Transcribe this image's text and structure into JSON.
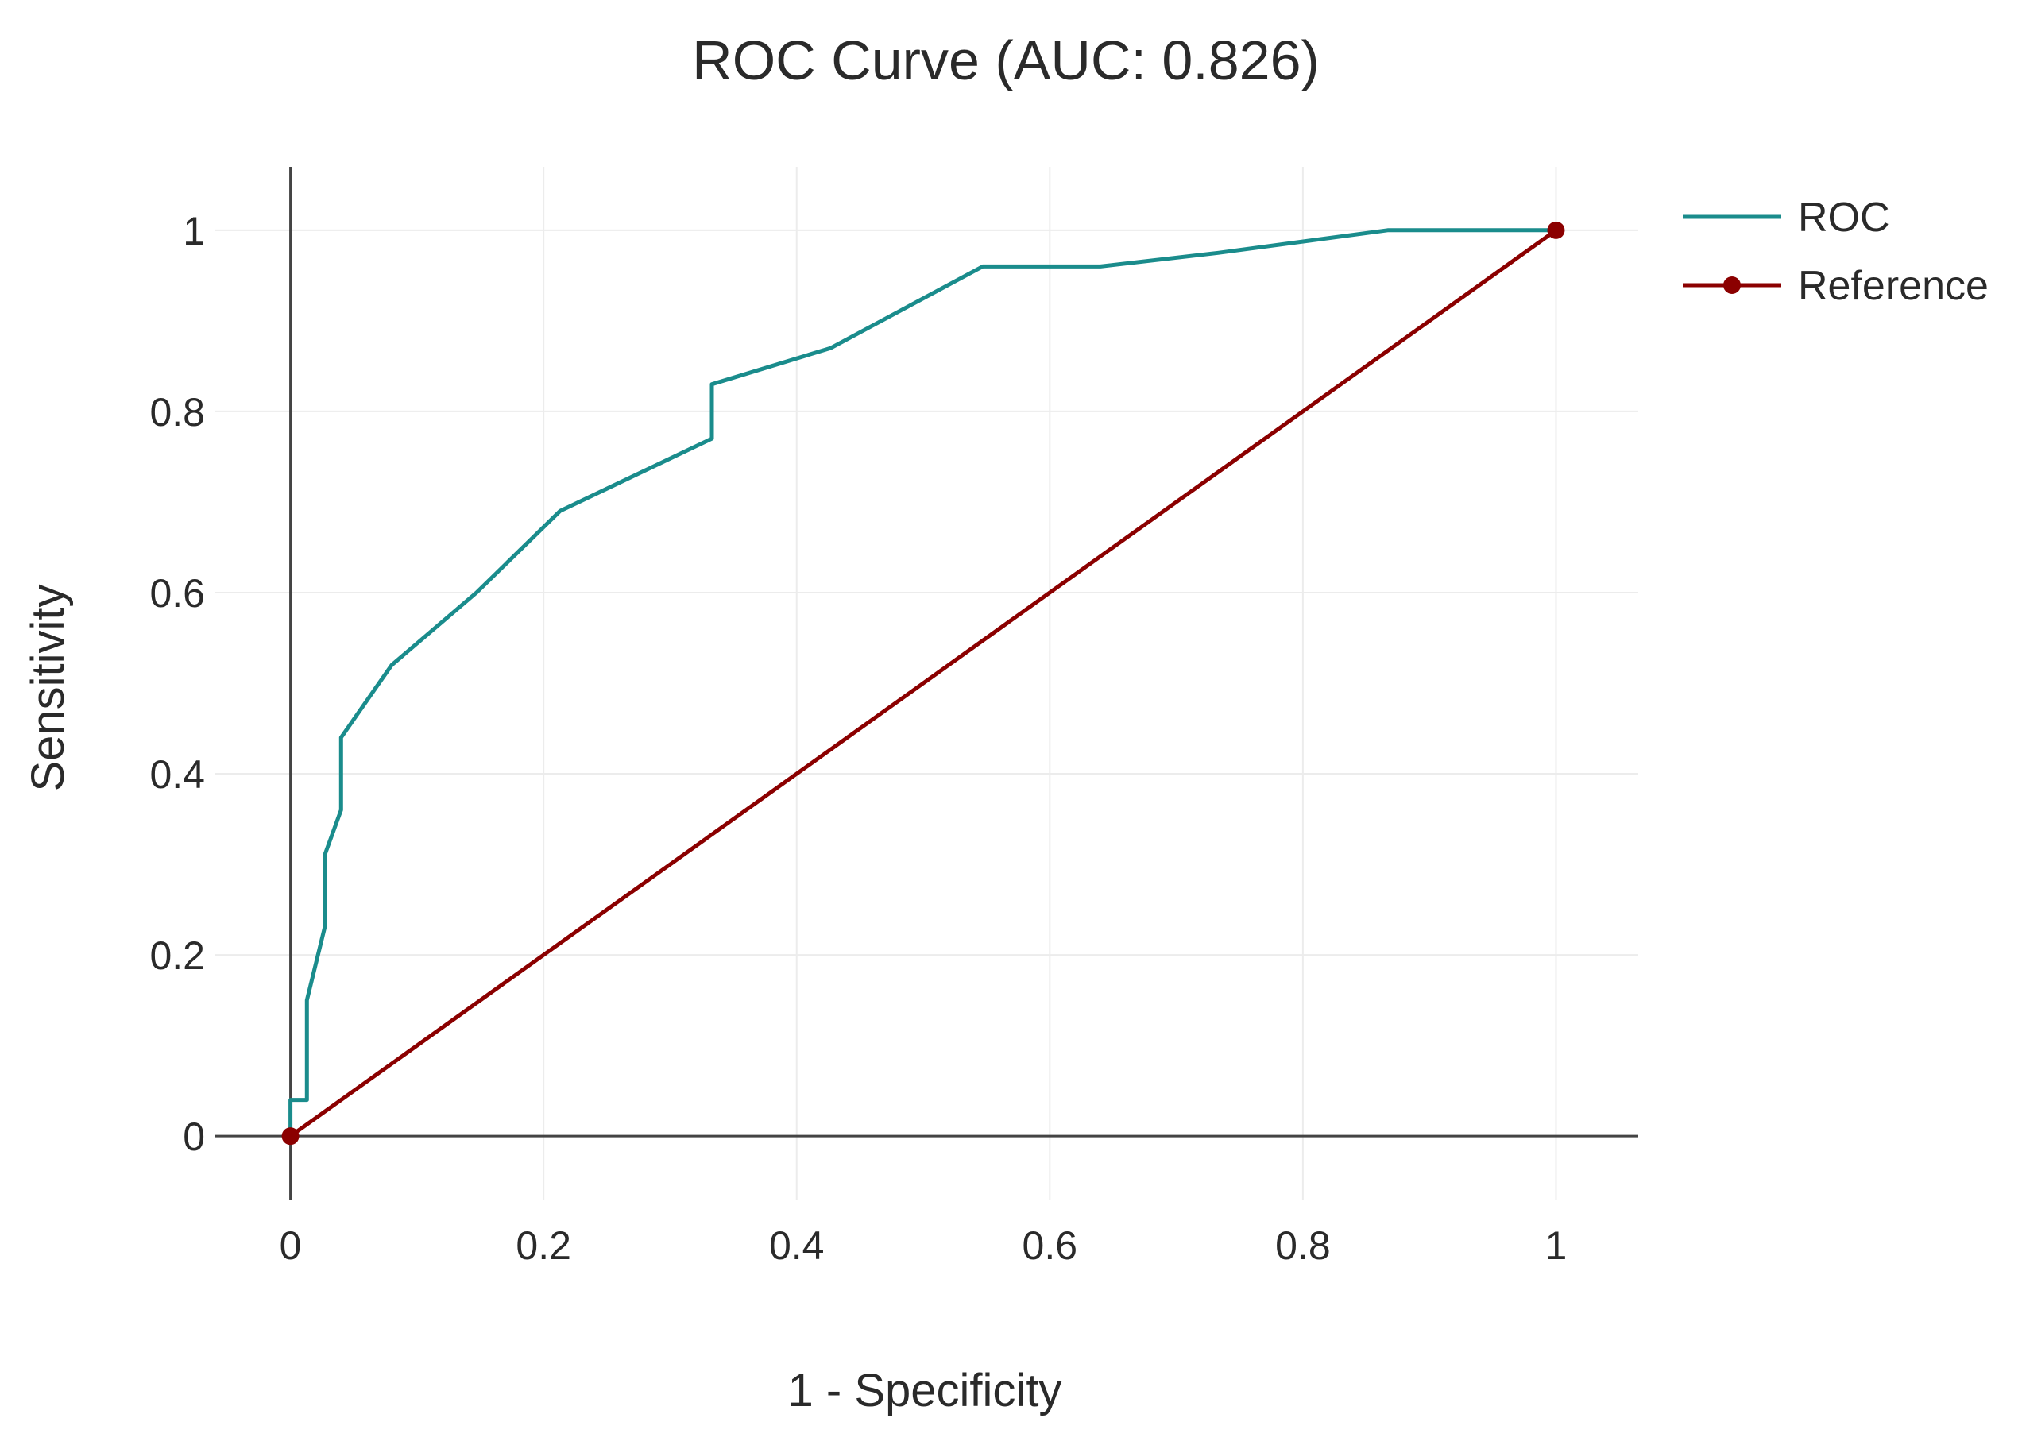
{
  "chart_data": {
    "type": "line",
    "title": "ROC Curve (AUC: 0.826)",
    "xlabel": "1 - Specificity",
    "ylabel": "Sensitivity",
    "xlim": [
      -0.06,
      1.065
    ],
    "ylim": [
      -0.07,
      1.07
    ],
    "xticks": [
      0,
      0.2,
      0.4,
      0.6,
      0.8,
      1
    ],
    "xtick_labels": [
      "0",
      "0.2",
      "0.4",
      "0.6",
      "0.8",
      "1"
    ],
    "yticks": [
      0,
      0.2,
      0.4,
      0.6,
      0.8,
      1
    ],
    "ytick_labels": [
      "0",
      "0.2",
      "0.4",
      "0.6",
      "0.8",
      "1"
    ],
    "grid": true,
    "legend_position": "top-right",
    "series": [
      {
        "name": "ROC",
        "color": "#1a8c8c",
        "markers": false,
        "x": [
          0,
          0,
          0.013,
          0.013,
          0.027,
          0.027,
          0.04,
          0.04,
          0.08,
          0.147,
          0.213,
          0.333,
          0.333,
          0.427,
          0.547,
          0.64,
          0.733,
          0.867,
          1
        ],
        "y": [
          0,
          0.04,
          0.04,
          0.15,
          0.23,
          0.31,
          0.36,
          0.44,
          0.52,
          0.6,
          0.69,
          0.77,
          0.83,
          0.87,
          0.96,
          0.96,
          0.975,
          1,
          1
        ]
      },
      {
        "name": "Reference",
        "color": "#8b0000",
        "markers": true,
        "x": [
          0,
          1
        ],
        "y": [
          0,
          1
        ]
      }
    ]
  }
}
